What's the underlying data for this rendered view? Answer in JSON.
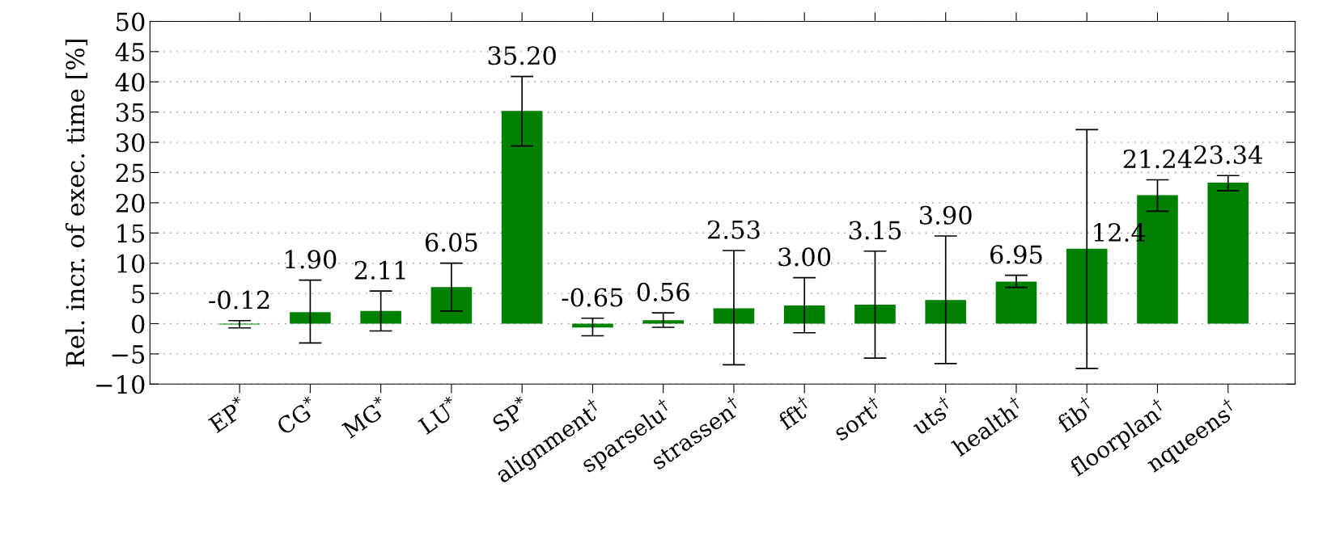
{
  "chart_data": {
    "type": "bar",
    "ylabel": "Rel. incr. of exec. time [%]",
    "categories": [
      "EP$^{*}$",
      "CG$^{*}$",
      "MG$^{*}$",
      "LU$^{*}$",
      "SP$^{*}$",
      "alignment$^{†}$",
      "sparselu$^{†}$",
      "strassen$^{†}$",
      "fft$^{†}$",
      "sort$^{†}$",
      "uts$^{†}$",
      "health$^{†}$",
      "fib$^{†}$",
      "floorplan$^{†}$",
      "nqueens$^{†}$"
    ],
    "values": [
      -0.12,
      1.9,
      2.11,
      6.05,
      35.2,
      -0.65,
      0.56,
      2.53,
      3.0,
      3.15,
      3.9,
      6.95,
      12.4,
      21.24,
      23.34
    ],
    "value_labels": [
      "-0.12",
      "1.90",
      "2.11",
      "6.05",
      "35.20",
      "-0.65",
      "0.56",
      "2.53",
      "3.00",
      "3.15",
      "3.90",
      "6.95",
      "12.4",
      "21.24",
      "23.34"
    ],
    "errors": [
      [
        -0.7,
        0.5
      ],
      [
        -3.2,
        7.2
      ],
      [
        -1.2,
        5.4
      ],
      [
        2.1,
        10.0
      ],
      [
        29.4,
        40.9
      ],
      [
        -2.0,
        0.9
      ],
      [
        -0.6,
        1.8
      ],
      [
        -6.8,
        12.1
      ],
      [
        -1.5,
        7.6
      ],
      [
        -5.7,
        12.0
      ],
      [
        -6.6,
        14.5
      ],
      [
        6.0,
        8.0
      ],
      [
        -7.4,
        32.1
      ],
      [
        18.6,
        23.8
      ],
      [
        22.0,
        24.5
      ]
    ],
    "color": "#008000",
    "ylim": [
      -10,
      50
    ],
    "yticks": [
      {
        "value": -10,
        "label": "−10"
      },
      {
        "value": -5,
        "label": "−5"
      },
      0,
      5,
      10,
      15,
      20,
      25,
      30,
      35,
      40,
      45,
      50
    ],
    "grid": "y"
  }
}
